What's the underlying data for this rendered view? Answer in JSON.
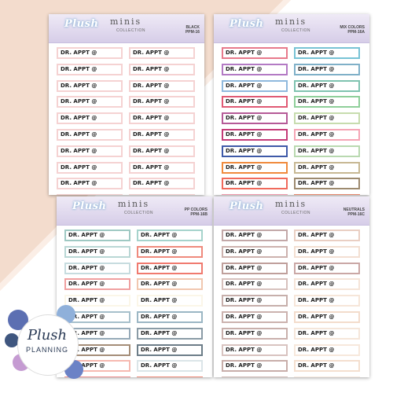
{
  "brand": {
    "plush": "Plush",
    "minis": "minis",
    "collection": "COLLECTION",
    "badge_plush": "Plush",
    "badge_planning": "PLANNING"
  },
  "label_text": "DR. APPT @",
  "sheets": [
    {
      "variant": "BLACK",
      "code": "PPM-16",
      "borders": [
        "#f5d2d2",
        "#f5d2d2",
        "#f5d2d2",
        "#f5d2d2",
        "#f5d2d2",
        "#f5d2d2",
        "#f5d2d2",
        "#f5d2d2",
        "#f5d2d2",
        "#f5d2d2",
        "#f5d2d2",
        "#f5d2d2",
        "#f5d2d2",
        "#f5d2d2",
        "#f5d2d2",
        "#f5d2d2",
        "#f5d2d2",
        "#f5d2d2",
        "#f5d2d2",
        "#f5d2d2"
      ]
    },
    {
      "variant": "MIX COLORS",
      "code": "PPM-16A",
      "borders": [
        "#e77a8c",
        "#b37ac4",
        "#8fb9dd",
        "#e05a74",
        "#b55a97",
        "#c43b78",
        "#3f5aa8",
        "#f08a3c",
        "#f06a5c",
        "#f39ab0",
        "#78c3d5",
        "#7fb0c8",
        "#7fc3b0",
        "#8fcf9a",
        "#c7dcae",
        "#f5a5b5",
        "#b9d9b0",
        "#c7b893",
        "#9d8a6f",
        "#e9896f"
      ]
    },
    {
      "variant": "PP COLORS",
      "code": "PPM-16B",
      "borders": [
        "#9fc9c3",
        "#b9d7d5",
        "#c6dcdf",
        "#f0a0a0",
        "#fbf6e8",
        "#a7c0cc",
        "#96aab8",
        "#a48d78",
        "#f6b9b0",
        "#f08f8f",
        "#a6d3cc",
        "#ef8a7d",
        "#f07a6f",
        "#f1c7b0",
        "#fbf6e8",
        "#9bb6c4",
        "#8a9ba6",
        "#6c7d88",
        "#dbe5e8",
        "#f08a78"
      ]
    },
    {
      "variant": "NEUTRALS",
      "code": "PPM-16C",
      "borders": [
        "#c3a8a8",
        "#cdb2ae",
        "#bf9f9b",
        "#d7c1bd",
        "#c7afab",
        "#ccb2ae",
        "#c9b0ac",
        "#d8c3c0",
        "#c8aeaa",
        "#d2bab6",
        "#eacfc3",
        "#f3dfd2",
        "#caa7a5",
        "#f5e4d8",
        "#f6e6d9",
        "#f3dccc",
        "#f5e6da",
        "#f7e8dc",
        "#f4dfcf",
        "#f8e9de"
      ]
    }
  ]
}
